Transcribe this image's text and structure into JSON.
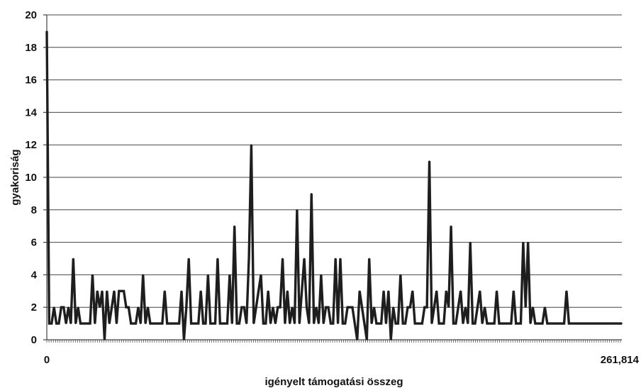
{
  "chart_data": {
    "type": "line",
    "title": "",
    "xlabel": "igényelt támogatási összeg",
    "ylabel": "gyakoriság",
    "ylim": [
      0,
      20
    ],
    "yticks": [
      0,
      2,
      4,
      6,
      8,
      10,
      12,
      14,
      16,
      18,
      20
    ],
    "yticklabels": [
      "0",
      "2",
      "4",
      "6",
      "8",
      "10",
      "12",
      "14",
      "16",
      "18",
      "20"
    ],
    "xticklabels": [
      "0",
      "261,814"
    ],
    "grid": true,
    "legend": "none",
    "colors": {
      "line": "#1e1e1e",
      "grid": "#444444",
      "background": "#ffffff"
    },
    "series": [
      {
        "values": [
          19,
          1,
          1,
          2,
          1,
          1,
          2,
          2,
          1,
          2,
          1,
          5,
          1,
          2,
          1,
          1,
          1,
          1,
          1,
          4,
          1,
          3,
          2,
          3,
          0,
          3,
          1,
          2,
          3,
          1,
          3,
          3,
          3,
          2,
          2,
          1,
          1,
          1,
          2,
          1,
          4,
          1,
          2,
          1,
          1,
          1,
          1,
          1,
          1,
          3,
          1,
          1,
          1,
          1,
          1,
          1,
          3,
          0,
          2,
          5,
          1,
          1,
          1,
          1,
          3,
          1,
          1,
          4,
          1,
          1,
          1,
          5,
          1,
          1,
          1,
          1,
          4,
          1,
          7,
          1,
          1,
          2,
          2,
          1,
          5,
          12,
          1,
          2,
          3,
          4,
          1,
          1,
          3,
          1,
          2,
          1,
          2,
          2,
          5,
          1,
          3,
          1,
          2,
          1,
          8,
          1,
          3,
          5,
          2,
          1,
          9,
          1,
          2,
          1,
          4,
          1,
          2,
          2,
          1,
          1,
          5,
          1,
          5,
          1,
          1,
          2,
          2,
          2,
          1,
          0,
          3,
          2,
          1,
          0,
          5,
          1,
          2,
          1,
          1,
          1,
          3,
          1,
          3,
          0,
          2,
          1,
          1,
          4,
          1,
          1,
          2,
          2,
          3,
          1,
          1,
          1,
          1,
          2,
          2,
          11,
          1,
          2,
          3,
          1,
          1,
          1,
          3,
          2,
          7,
          1,
          1,
          2,
          3,
          1,
          2,
          1,
          6,
          1,
          1,
          2,
          3,
          1,
          2,
          1,
          1,
          1,
          1,
          3,
          1,
          1,
          1,
          1,
          1,
          1,
          3,
          1,
          1,
          1,
          6,
          2,
          6,
          1,
          2,
          1,
          1,
          1,
          1,
          2,
          1,
          1,
          1,
          1,
          1,
          1,
          1,
          1,
          3,
          1,
          1,
          1,
          1,
          1,
          1,
          1,
          1,
          1,
          1,
          1,
          1,
          1,
          1,
          1,
          1,
          1,
          1,
          1,
          1,
          1,
          1,
          1
        ]
      }
    ]
  }
}
